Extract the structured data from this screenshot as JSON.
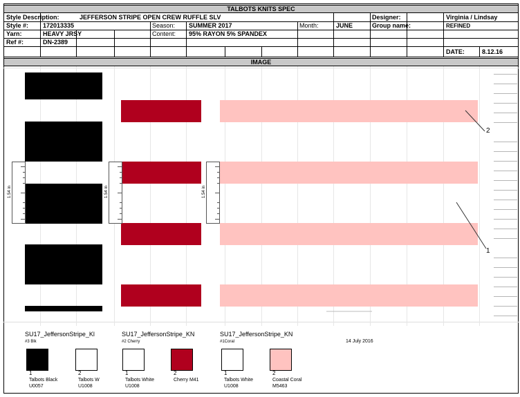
{
  "header": {
    "title": "TALBOTS KNITS SPEC",
    "style_description_label": "Style Description:",
    "style_description": "JEFFERSON STRIPE OPEN CREW RUFFLE SLV",
    "designer_label": "Designer:",
    "designer": "Virginia / Lindsay",
    "style_no_label": "Style #:",
    "style_no": "172013335",
    "season_label": "Season:",
    "season": "SUMMER 2017",
    "month_label": "Month:",
    "month": "JUNE",
    "group_label": "Group name:",
    "group": "REFINED",
    "yarn_label": "Yarn:",
    "yarn": "HEAVY JRSY",
    "content_label": "Content:",
    "content": "95% RAYON 5% SPANDEX",
    "ref_label": "Ref #:",
    "ref": "DN-2389",
    "date_label": "DATE:",
    "date": "8.12.16"
  },
  "image_section": {
    "title": "IMAGE",
    "ruler_label": "1.54 in",
    "callouts": [
      "2",
      "1"
    ],
    "date_stamp": "14 July 2016",
    "colors": {
      "black": "#000000",
      "cherry": "#b0001e",
      "coral": "#ffc3c0",
      "white": "#ffffff"
    }
  },
  "colorways": [
    {
      "file": "SU17_JeffersonStripe_Kl",
      "sub": "#3 Blk",
      "swatches": [
        {
          "num": "1",
          "name": "Talbots Black",
          "code": "U0057",
          "color": "#000000"
        },
        {
          "num": "2",
          "name": "Talbots W",
          "code": "U1008",
          "color": "#ffffff"
        }
      ]
    },
    {
      "file": "SU17_JeffersonStripe_KN",
      "sub": "#2 Cherry",
      "swatches": [
        {
          "num": "1",
          "name": "Talbots White",
          "code": "U1008",
          "color": "#ffffff"
        },
        {
          "num": "2",
          "name": "Cherry M41",
          "code": "",
          "color": "#b0001e"
        }
      ]
    },
    {
      "file": "SU17_JeffersonStripe_KN",
      "sub": "#1Coral",
      "swatches": [
        {
          "num": "1",
          "name": "Talbots White",
          "code": "U1008",
          "color": "#ffffff"
        },
        {
          "num": "2",
          "name": "Coastal Coral",
          "code": "M5463",
          "color": "#ffc3c0"
        }
      ]
    }
  ]
}
